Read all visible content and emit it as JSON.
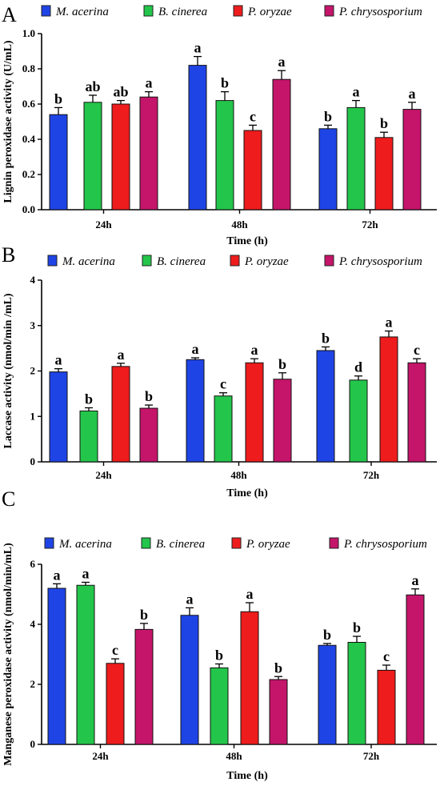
{
  "colors": {
    "M. acerina": "#1f44e6",
    "B. cinerea": "#23c64a",
    "P. oryzae": "#ee1c1c",
    "P. chrysosporium": "#c4156a"
  },
  "chart_data": [
    {
      "type": "bar",
      "panel": "A",
      "categories": [
        "24h",
        "48h",
        "72h"
      ],
      "series": [
        {
          "name": "M. acerina",
          "values": [
            0.54,
            0.82,
            0.46
          ],
          "errors": [
            0.04,
            0.05,
            0.02
          ],
          "letters": [
            "b",
            "a",
            "b"
          ]
        },
        {
          "name": "B. cinerea",
          "values": [
            0.61,
            0.62,
            0.58
          ],
          "errors": [
            0.04,
            0.05,
            0.04
          ],
          "letters": [
            "ab",
            "b",
            "a"
          ]
        },
        {
          "name": "P. oryzae",
          "values": [
            0.6,
            0.45,
            0.41
          ],
          "errors": [
            0.02,
            0.03,
            0.03
          ],
          "letters": [
            "ab",
            "c",
            "b"
          ]
        },
        {
          "name": "P. chrysosporium",
          "values": [
            0.64,
            0.74,
            0.57
          ],
          "errors": [
            0.03,
            0.05,
            0.04
          ],
          "letters": [
            "a",
            "a",
            "a"
          ]
        }
      ],
      "xlabel": "Time (h)",
      "ylabel": "Lignin peroxidase activity (U/mL)",
      "ylim": [
        0,
        1.0
      ],
      "yticks": [
        "0.0",
        "0.2",
        "0.4",
        "0.6",
        "0.8",
        "1.0"
      ]
    },
    {
      "type": "bar",
      "panel": "B",
      "categories": [
        "24h",
        "48h",
        "72h"
      ],
      "series": [
        {
          "name": "M. acerina",
          "values": [
            1.98,
            2.25,
            2.45
          ],
          "errors": [
            0.07,
            0.04,
            0.08
          ],
          "letters": [
            "a",
            "a",
            "b"
          ]
        },
        {
          "name": "B. cinerea",
          "values": [
            1.12,
            1.45,
            1.8
          ],
          "errors": [
            0.07,
            0.07,
            0.09
          ],
          "letters": [
            "b",
            "c",
            "d"
          ]
        },
        {
          "name": "P. oryzae",
          "values": [
            2.1,
            2.18,
            2.75
          ],
          "errors": [
            0.07,
            0.09,
            0.13
          ],
          "letters": [
            "a",
            "a",
            "a"
          ]
        },
        {
          "name": "P. chrysosporium",
          "values": [
            1.18,
            1.82,
            2.18
          ],
          "errors": [
            0.07,
            0.14,
            0.09
          ],
          "letters": [
            "b",
            "b",
            "c"
          ]
        }
      ],
      "xlabel": "Time (h)",
      "ylabel": "Laccase activity (nmol/min /mL)",
      "ylim": [
        0,
        4
      ],
      "yticks": [
        "0",
        "1",
        "2",
        "3",
        "4"
      ]
    },
    {
      "type": "bar",
      "panel": "C",
      "categories": [
        "24h",
        "48h",
        "72h"
      ],
      "series": [
        {
          "name": "M. acerina",
          "values": [
            5.2,
            4.3,
            3.3
          ],
          "errors": [
            0.15,
            0.25,
            0.06
          ],
          "letters": [
            "a",
            "a",
            "b"
          ]
        },
        {
          "name": "B. cinerea",
          "values": [
            5.3,
            2.55,
            3.4
          ],
          "errors": [
            0.1,
            0.13,
            0.2
          ],
          "letters": [
            "a",
            "b",
            "b"
          ]
        },
        {
          "name": "P. oryzae",
          "values": [
            2.7,
            4.42,
            2.47
          ],
          "errors": [
            0.15,
            0.3,
            0.17
          ],
          "letters": [
            "c",
            "a",
            "c"
          ]
        },
        {
          "name": "P. chrysosporium",
          "values": [
            3.83,
            2.16,
            4.98
          ],
          "errors": [
            0.2,
            0.1,
            0.2
          ],
          "letters": [
            "b",
            "b",
            "a"
          ]
        }
      ],
      "xlabel": "Time (h)",
      "ylabel": "Manganese peroxidase activity (nmol/min/mL)",
      "ylim": [
        0,
        6
      ],
      "yticks": [
        "0",
        "2",
        "4",
        "6"
      ]
    }
  ]
}
